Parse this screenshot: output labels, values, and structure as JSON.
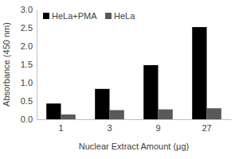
{
  "chart_data": {
    "type": "bar",
    "x_label": "Nuclear Extract Amount (µg)",
    "y_label": "Absorbance (450 nm)",
    "categories": [
      "1",
      "3",
      "9",
      "27"
    ],
    "series": [
      {
        "name": "HeLa+PMA",
        "color": "#000000",
        "values": [
          0.43,
          0.83,
          1.48,
          2.52
        ]
      },
      {
        "name": "HeLa",
        "color": "#595959",
        "values": [
          0.13,
          0.25,
          0.27,
          0.3
        ]
      }
    ],
    "ylim": [
      0,
      3
    ],
    "yticks": [
      {
        "value": 0,
        "label": "0.0"
      },
      {
        "value": 0.5,
        "label": "0.5"
      },
      {
        "value": 1,
        "label": "1.0"
      },
      {
        "value": 1.5,
        "label": "1.5"
      },
      {
        "value": 2,
        "label": "2.0"
      },
      {
        "value": 2.5,
        "label": "2.5"
      },
      {
        "value": 3,
        "label": "3.0"
      }
    ],
    "grid": false,
    "legend": "top-left"
  }
}
